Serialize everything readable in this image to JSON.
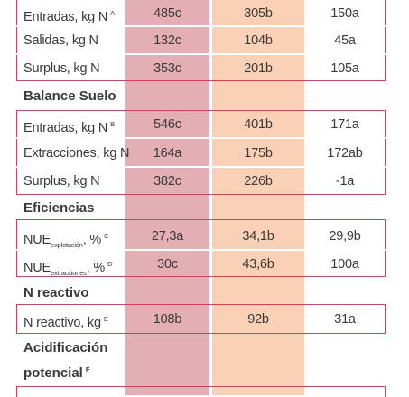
{
  "columns": {
    "colA_color": "#e3afb5",
    "colB_color": "#fad1b7",
    "border_color": "#c3485e"
  },
  "group_top": {
    "rows": [
      {
        "label": "Entradas, kg N",
        "mark": "A",
        "a": "485c",
        "b": "305b",
        "c": "150a"
      },
      {
        "label": "Salidas, kg N",
        "mark": "",
        "a": "132c",
        "b": "104b",
        "c": "45a"
      },
      {
        "label": "Surplus, kg N",
        "mark": "",
        "a": "353c",
        "b": "201b",
        "c": "105a"
      }
    ]
  },
  "balance_suelo": {
    "title": "Balance Suelo",
    "rows": [
      {
        "label": "Entradas, kg N",
        "mark": "B",
        "a": "546c",
        "b": "401b",
        "c": "171a"
      },
      {
        "label": "Extracciones, kg N",
        "mark": "",
        "a": "164a",
        "b": "175b",
        "c": "172ab"
      },
      {
        "label": "Surplus, kg N",
        "mark": "",
        "a": "382c",
        "b": "226b",
        "c": "-1a"
      }
    ]
  },
  "eficiencias": {
    "title": "Eficiencias",
    "rows": [
      {
        "label": "NUE",
        "sub": "explotación",
        "suffix": ", %",
        "mark": "C",
        "a": "27,3a",
        "b": "34,1b",
        "c": "29,9b"
      },
      {
        "label": "NUE",
        "sub": "extracciones",
        "suffix": ", %",
        "mark": "D",
        "a": "30c",
        "b": "43,6b",
        "c": "100a"
      }
    ]
  },
  "n_reactivo": {
    "title": "N reactivo",
    "rows": [
      {
        "label": "N reactivo, kg",
        "mark": "E",
        "a": "108b",
        "b": "92b",
        "c": "31a"
      }
    ]
  },
  "acidificacion": {
    "title_line1": "Acidificación",
    "title_line2": "potencial",
    "mark": "F"
  }
}
